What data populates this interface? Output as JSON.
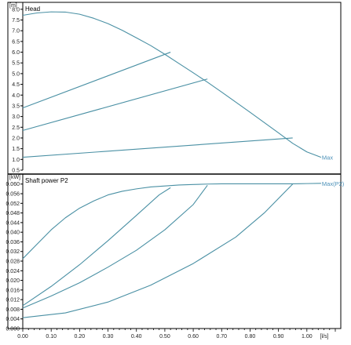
{
  "colors": {
    "curve": "#4a90a4",
    "series_label": "#4a90b8",
    "axis": "#000000",
    "frame": "#000000",
    "grid": "#d9d9d9"
  },
  "chart_data": [
    {
      "type": "line",
      "title": "Head",
      "ylabel": "[m]",
      "xlabel": "",
      "xlim": [
        0,
        1.1
      ],
      "ylim": [
        0.5,
        8.25
      ],
      "yticks": [
        "0.5",
        "1.0",
        "1.5",
        "2.0",
        "2.5",
        "3.0",
        "3.5",
        "4.0",
        "4.5",
        "5.0",
        "5.5",
        "6.0",
        "6.5",
        "7.0",
        "7.5",
        "8.0"
      ],
      "grid": false,
      "series": [
        {
          "name": "Max",
          "x": [
            0,
            0.05,
            0.1,
            0.15,
            0.2,
            0.25,
            0.3,
            0.35,
            0.4,
            0.45,
            0.5,
            0.55,
            0.6,
            0.65,
            0.7,
            0.75,
            0.8,
            0.85,
            0.9,
            0.95,
            1.0,
            1.05
          ],
          "y": [
            7.72,
            7.83,
            7.88,
            7.87,
            7.77,
            7.58,
            7.33,
            7.02,
            6.67,
            6.31,
            5.9,
            5.47,
            5.04,
            4.6,
            4.14,
            3.67,
            3.2,
            2.72,
            2.24,
            1.75,
            1.35,
            1.1
          ]
        },
        {
          "x": [
            0,
            0.52
          ],
          "y": [
            3.4,
            6.0
          ]
        },
        {
          "x": [
            0,
            0.65
          ],
          "y": [
            2.35,
            4.75
          ]
        },
        {
          "x": [
            0,
            0.95
          ],
          "y": [
            1.1,
            2.0
          ]
        }
      ]
    },
    {
      "type": "line",
      "title": "Shaft power P2",
      "ylabel": "[kW]",
      "xlabel": "[l/s]",
      "xlim": [
        0,
        1.1
      ],
      "ylim": [
        0,
        0.0635
      ],
      "xticks": [
        "0.00",
        "0.10",
        "0.20",
        "0.30",
        "0.40",
        "0.50",
        "0.60",
        "0.70",
        "0.80",
        "0.90",
        "1.00"
      ],
      "yticks": [
        "0.000",
        "0.004",
        "0.008",
        "0.012",
        "0.016",
        "0.020",
        "0.024",
        "0.028",
        "0.032",
        "0.036",
        "0.040",
        "0.044",
        "0.048",
        "0.052",
        "0.056",
        "0.060"
      ],
      "grid": false,
      "series": [
        {
          "name": "Max(P2)",
          "x": [
            0,
            0.05,
            0.1,
            0.15,
            0.2,
            0.25,
            0.3,
            0.35,
            0.4,
            0.45,
            0.5,
            0.55,
            0.6,
            0.65,
            0.7,
            0.75,
            0.8,
            0.85,
            0.9,
            0.95,
            1.0,
            1.05
          ],
          "y": [
            0.029,
            0.035,
            0.041,
            0.046,
            0.05,
            0.053,
            0.0555,
            0.057,
            0.058,
            0.0588,
            0.0592,
            0.0596,
            0.0598,
            0.06,
            0.0601,
            0.0601,
            0.0601,
            0.0601,
            0.0601,
            0.0601,
            0.0602,
            0.0603
          ]
        },
        {
          "x": [
            0,
            0.1,
            0.2,
            0.3,
            0.4,
            0.48,
            0.52
          ],
          "y": [
            0.0095,
            0.0175,
            0.0265,
            0.0365,
            0.047,
            0.0555,
            0.0585
          ]
        },
        {
          "x": [
            0,
            0.1,
            0.2,
            0.3,
            0.4,
            0.5,
            0.6,
            0.65
          ],
          "y": [
            0.0085,
            0.0135,
            0.019,
            0.0255,
            0.0325,
            0.041,
            0.0515,
            0.0595
          ]
        },
        {
          "x": [
            0,
            0.15,
            0.3,
            0.45,
            0.6,
            0.75,
            0.85,
            0.95
          ],
          "y": [
            0.0045,
            0.0065,
            0.011,
            0.018,
            0.027,
            0.038,
            0.048,
            0.06
          ]
        }
      ]
    }
  ]
}
